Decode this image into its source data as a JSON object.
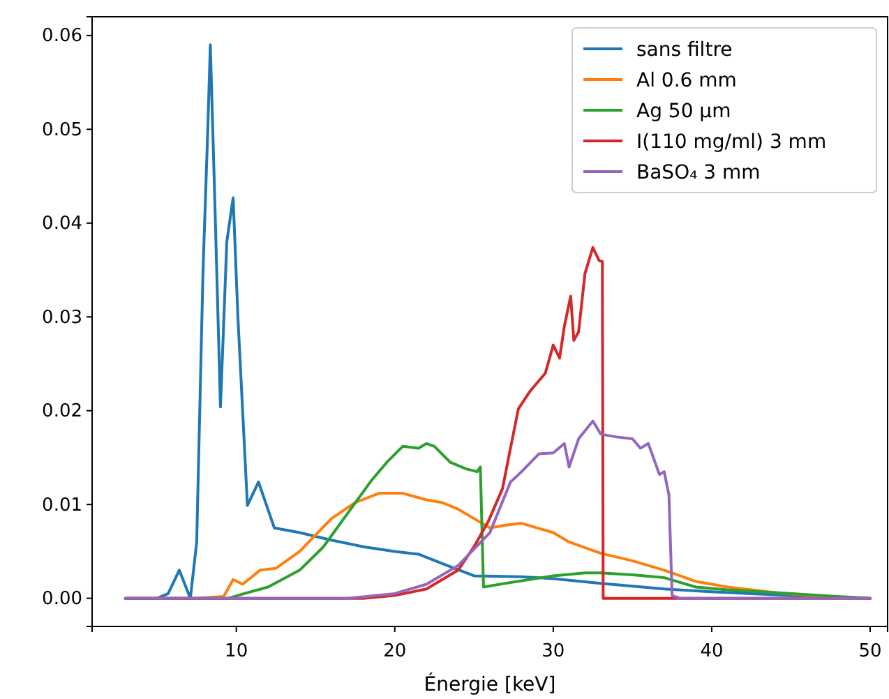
{
  "chart_data": {
    "type": "line",
    "xlabel": "Énergie [keV]",
    "xlim": [
      0.9,
      51.1
    ],
    "ylim": [
      -0.003,
      0.062
    ],
    "xticks": [
      10,
      20,
      30,
      40,
      50
    ],
    "yticks": [
      {
        "value": 0,
        "label": "0.00"
      },
      {
        "value": 0.01,
        "label": "0.01"
      },
      {
        "value": 0.02,
        "label": "0.02"
      },
      {
        "value": 0.03,
        "label": "0.03"
      },
      {
        "value": 0.04,
        "label": "0.04"
      },
      {
        "value": 0.05,
        "label": "0.05"
      },
      {
        "value": 0.06,
        "label": "0.06"
      }
    ],
    "grid": false,
    "legend": "top right",
    "line_style": "solid",
    "marker": "none",
    "series": [
      {
        "name": "sans filtre",
        "color": "#1f77b4",
        "x": [
          3,
          5,
          5.7,
          6.4,
          7.1,
          7.5,
          7.9,
          8.2,
          8.36,
          8.6,
          9.0,
          9.4,
          9.8,
          10.1,
          10.7,
          11.4,
          12.4,
          14,
          16,
          18,
          20,
          21.5,
          23,
          25,
          28,
          30,
          33,
          37,
          40,
          45,
          50
        ],
        "values": [
          0,
          0,
          0.0005,
          0.003,
          0,
          0.006,
          0.035,
          0.05,
          0.059,
          0.045,
          0.0204,
          0.038,
          0.0427,
          0.03,
          0.0099,
          0.0124,
          0.0075,
          0.007,
          0.0062,
          0.0055,
          0.005,
          0.0047,
          0.0037,
          0.0024,
          0.0023,
          0.0021,
          0.0016,
          0.001,
          0.0007,
          0.0003,
          0
        ]
      },
      {
        "name": "Al 0.6 mm",
        "color": "#ff7f0e",
        "x": [
          3,
          7.5,
          9.2,
          9.8,
          10.4,
          11.5,
          12.5,
          14,
          16,
          17.5,
          19,
          20.5,
          22,
          23,
          24,
          25,
          26,
          27,
          28,
          29,
          30,
          31,
          33,
          35,
          37,
          39,
          41,
          44,
          47,
          50
        ],
        "values": [
          0,
          0,
          0.0002,
          0.002,
          0.0015,
          0.003,
          0.0032,
          0.005,
          0.0085,
          0.0102,
          0.0112,
          0.0112,
          0.0105,
          0.0102,
          0.0095,
          0.0085,
          0.0075,
          0.0078,
          0.008,
          0.0075,
          0.007,
          0.006,
          0.0048,
          0.004,
          0.003,
          0.0018,
          0.0012,
          0.0006,
          0.0002,
          0
        ]
      },
      {
        "name": "Ag 50 μm",
        "color": "#2ca02c",
        "x": [
          3,
          9.5,
          10.5,
          12,
          14,
          15.5,
          17,
          18.5,
          19.5,
          20.5,
          21.5,
          22,
          22.5,
          23.5,
          24.5,
          25.2,
          25.4,
          25.6,
          27,
          28.5,
          30,
          32,
          33,
          35,
          37,
          39,
          41,
          44,
          47,
          50
        ],
        "values": [
          0,
          0,
          0.0005,
          0.0012,
          0.003,
          0.0055,
          0.009,
          0.0125,
          0.0145,
          0.0162,
          0.016,
          0.0165,
          0.0162,
          0.0145,
          0.0138,
          0.0135,
          0.014,
          0.0012,
          0.0016,
          0.002,
          0.0024,
          0.0027,
          0.0027,
          0.0025,
          0.0022,
          0.0012,
          0.0009,
          0.0006,
          0.0003,
          0
        ]
      },
      {
        "name": "I(110 mg/ml) 3 mm",
        "color": "#d62728",
        "x": [
          3,
          18,
          20,
          22,
          24,
          25,
          25.9,
          26.8,
          27.3,
          27.8,
          28.5,
          29.5,
          30,
          30.4,
          30.7,
          31.1,
          31.3,
          31.6,
          32,
          32.5,
          32.9,
          33.1,
          33.15,
          35,
          40,
          50
        ],
        "values": [
          0,
          0,
          0.0003,
          0.001,
          0.003,
          0.0055,
          0.0082,
          0.0117,
          0.016,
          0.0202,
          0.022,
          0.024,
          0.027,
          0.0256,
          0.029,
          0.0322,
          0.0275,
          0.0284,
          0.0346,
          0.0374,
          0.036,
          0.0359,
          0,
          0,
          0,
          0
        ]
      },
      {
        "name": "BaSO₄ 3 mm",
        "color": "#9467bd",
        "x": [
          3,
          17,
          20,
          22,
          24,
          26,
          27.3,
          28,
          29.1,
          30,
          30.7,
          31,
          31.6,
          32.5,
          33,
          34,
          35,
          35.5,
          36,
          36.7,
          37,
          37.3,
          37.5,
          38,
          45,
          50
        ],
        "values": [
          0,
          0,
          0.0005,
          0.0015,
          0.0035,
          0.007,
          0.0124,
          0.0135,
          0.0154,
          0.0155,
          0.0165,
          0.014,
          0.017,
          0.0189,
          0.0175,
          0.0172,
          0.017,
          0.016,
          0.0165,
          0.0132,
          0.0135,
          0.011,
          0.0003,
          0,
          0,
          0
        ]
      }
    ]
  }
}
